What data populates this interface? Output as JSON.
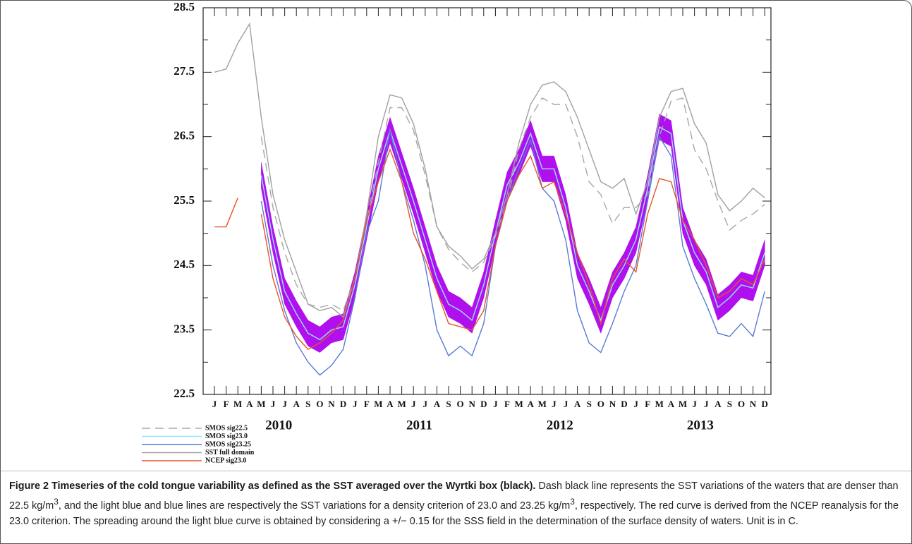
{
  "chart_data": {
    "type": "line",
    "categories": [
      "J",
      "F",
      "M",
      "A",
      "M",
      "J",
      "J",
      "A",
      "S",
      "O",
      "N",
      "D",
      "J",
      "F",
      "M",
      "A",
      "M",
      "J",
      "J",
      "A",
      "S",
      "O",
      "N",
      "D",
      "J",
      "F",
      "M",
      "A",
      "M",
      "J",
      "J",
      "A",
      "S",
      "O",
      "N",
      "D",
      "J",
      "F",
      "M",
      "A",
      "M",
      "J",
      "J",
      "A",
      "S",
      "O",
      "N",
      "D"
    ],
    "years": [
      "2010",
      "2011",
      "2012",
      "2013"
    ],
    "ylim": [
      22.5,
      28.5
    ],
    "yticks": [
      22.5,
      23.5,
      24.5,
      25.5,
      26.5,
      27.5,
      28.5
    ],
    "yminor_ticks": [
      23,
      24,
      25,
      26,
      27,
      28
    ],
    "series": [
      {
        "name": "SMOS sig22.5",
        "color": "#a8a8a8",
        "dashed": true,
        "values": [
          null,
          null,
          null,
          null,
          26.5,
          25.4,
          24.7,
          24.2,
          23.9,
          23.85,
          23.9,
          23.8,
          24.3,
          25.2,
          26.1,
          26.95,
          26.95,
          26.6,
          25.9,
          25.1,
          24.75,
          24.55,
          24.4,
          24.55,
          24.95,
          25.5,
          26.3,
          26.8,
          27.1,
          27.0,
          27.0,
          26.5,
          25.8,
          25.6,
          25.15,
          25.4,
          25.4,
          25.6,
          26.5,
          27.05,
          27.1,
          26.3,
          26.0,
          25.5,
          25.05,
          25.2,
          25.3,
          25.45
        ]
      },
      {
        "name": "SMOS sig23.0",
        "color": "#8fe6ff",
        "values": [
          null,
          null,
          null,
          null,
          25.9,
          24.9,
          24.1,
          23.75,
          23.45,
          23.35,
          23.5,
          23.55,
          24.2,
          25.1,
          26.0,
          26.6,
          26.05,
          25.5,
          24.9,
          24.3,
          23.9,
          23.8,
          23.65,
          24.2,
          25.0,
          25.75,
          26.1,
          26.55,
          26.0,
          26.0,
          25.4,
          24.5,
          24.1,
          23.65,
          24.2,
          24.5,
          24.9,
          25.7,
          26.65,
          26.55,
          25.2,
          24.7,
          24.4,
          23.85,
          24.0,
          24.2,
          24.15,
          24.7
        ]
      },
      {
        "name": "SMOS sig23.25",
        "color": "#5a7bd6",
        "values": [
          null,
          null,
          null,
          null,
          25.5,
          24.5,
          23.8,
          23.3,
          23.0,
          22.8,
          22.95,
          23.2,
          24.0,
          25.0,
          25.5,
          26.6,
          25.8,
          25.2,
          24.5,
          23.5,
          23.1,
          23.25,
          23.1,
          23.6,
          24.8,
          25.5,
          26.0,
          26.45,
          25.7,
          25.5,
          24.9,
          23.8,
          23.3,
          23.15,
          23.6,
          24.1,
          24.5,
          25.5,
          26.5,
          26.2,
          24.8,
          24.3,
          23.9,
          23.45,
          23.4,
          23.6,
          23.4,
          24.1
        ]
      },
      {
        "name": "SST full domain",
        "color": "#a0a0a0",
        "values": [
          27.5,
          27.55,
          27.95,
          28.25,
          26.8,
          25.6,
          24.9,
          24.4,
          23.9,
          23.8,
          23.85,
          23.7,
          24.3,
          25.3,
          26.5,
          27.15,
          27.1,
          26.7,
          26.0,
          25.1,
          24.8,
          24.65,
          24.45,
          24.6,
          25.0,
          25.6,
          26.4,
          27.0,
          27.3,
          27.35,
          27.2,
          26.8,
          26.3,
          25.8,
          25.7,
          25.85,
          25.3,
          25.8,
          26.8,
          27.2,
          27.25,
          26.7,
          26.4,
          25.6,
          25.35,
          25.5,
          25.7,
          25.55
        ]
      },
      {
        "name": "NCEP sig23.0",
        "color": "#e8532a",
        "values": [
          25.1,
          25.1,
          25.55,
          null,
          25.3,
          24.3,
          23.7,
          23.4,
          23.2,
          23.3,
          23.45,
          23.65,
          24.3,
          25.2,
          25.8,
          26.3,
          25.8,
          25.0,
          24.6,
          24.1,
          23.6,
          23.55,
          23.5,
          23.8,
          24.8,
          25.5,
          25.9,
          26.2,
          25.7,
          25.8,
          25.3,
          24.7,
          24.2,
          23.6,
          24.3,
          24.6,
          24.4,
          25.3,
          25.85,
          25.8,
          25.2,
          24.9,
          24.5,
          24.0,
          24.1,
          24.3,
          24.2,
          24.6
        ]
      }
    ],
    "band": {
      "color": "#b010ee",
      "upper": [
        null,
        null,
        null,
        null,
        26.1,
        25.1,
        24.3,
        23.95,
        23.65,
        23.55,
        23.7,
        23.75,
        24.4,
        25.3,
        26.2,
        26.8,
        26.25,
        25.7,
        25.1,
        24.5,
        24.1,
        24.0,
        23.85,
        24.4,
        25.2,
        25.95,
        26.3,
        26.75,
        26.2,
        26.2,
        25.6,
        24.7,
        24.3,
        23.85,
        24.4,
        24.7,
        25.1,
        25.9,
        26.85,
        26.75,
        25.4,
        24.9,
        24.6,
        24.05,
        24.2,
        24.4,
        24.35,
        24.9
      ],
      "lower": [
        null,
        null,
        null,
        null,
        25.7,
        24.7,
        23.9,
        23.55,
        23.25,
        23.15,
        23.3,
        23.35,
        24.0,
        24.9,
        25.8,
        26.4,
        25.85,
        25.3,
        24.7,
        24.1,
        23.7,
        23.6,
        23.45,
        24.0,
        24.8,
        25.55,
        25.9,
        26.35,
        25.8,
        25.8,
        25.2,
        24.3,
        23.9,
        23.45,
        24.0,
        24.3,
        24.7,
        25.5,
        26.45,
        26.35,
        25.0,
        24.5,
        24.2,
        23.65,
        23.8,
        24.0,
        23.95,
        24.5
      ]
    }
  },
  "caption": {
    "title": "Figure 2 Timeseries of the cold tongue variability as defined as the SST averaged over the Wyrtki box (black).",
    "body": [
      " Dash black line represents the SST variations of the waters that are denser than 22.5 kg/m",
      "3",
      ", and the light blue and blue lines are respectively the SST variations for a density criterion of 23.0 and 23.25 kg/m",
      "3",
      ", respectively. The red curve is derived from the NCEP reanalysis for the 23.0 criterion. The spreading around the light blue curve is obtained by considering a +/− 0.15 for the SSS field in the determination of the surface density of waters. Unit is in C."
    ]
  }
}
